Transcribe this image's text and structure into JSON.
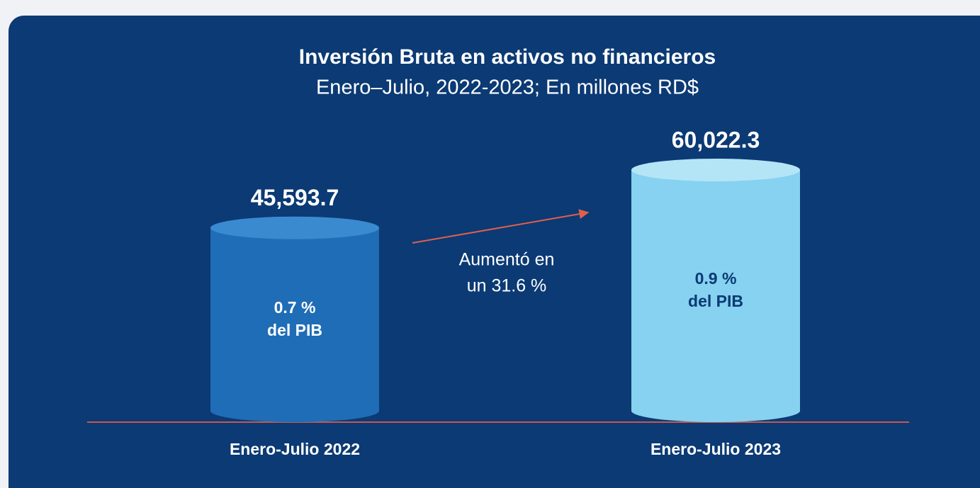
{
  "chart_data": {
    "type": "bar",
    "title": "Inversión Bruta en activos no financieros",
    "subtitle": "Enero–Julio, 2022-2023; En millones RD$",
    "categories": [
      "Enero-Julio 2022",
      "Enero-Julio 2023"
    ],
    "values": [
      45593.7,
      60022.3
    ],
    "value_labels": [
      "45,593.7",
      "60,022.3"
    ],
    "colors": [
      "#1f6db6",
      "#86d2f0"
    ],
    "pib_labels": [
      [
        "0.7 %",
        "del PIB"
      ],
      [
        "0.9 %",
        "del PIB"
      ]
    ],
    "annotation": [
      "Aumentó en",
      "un 31.6 %"
    ]
  }
}
